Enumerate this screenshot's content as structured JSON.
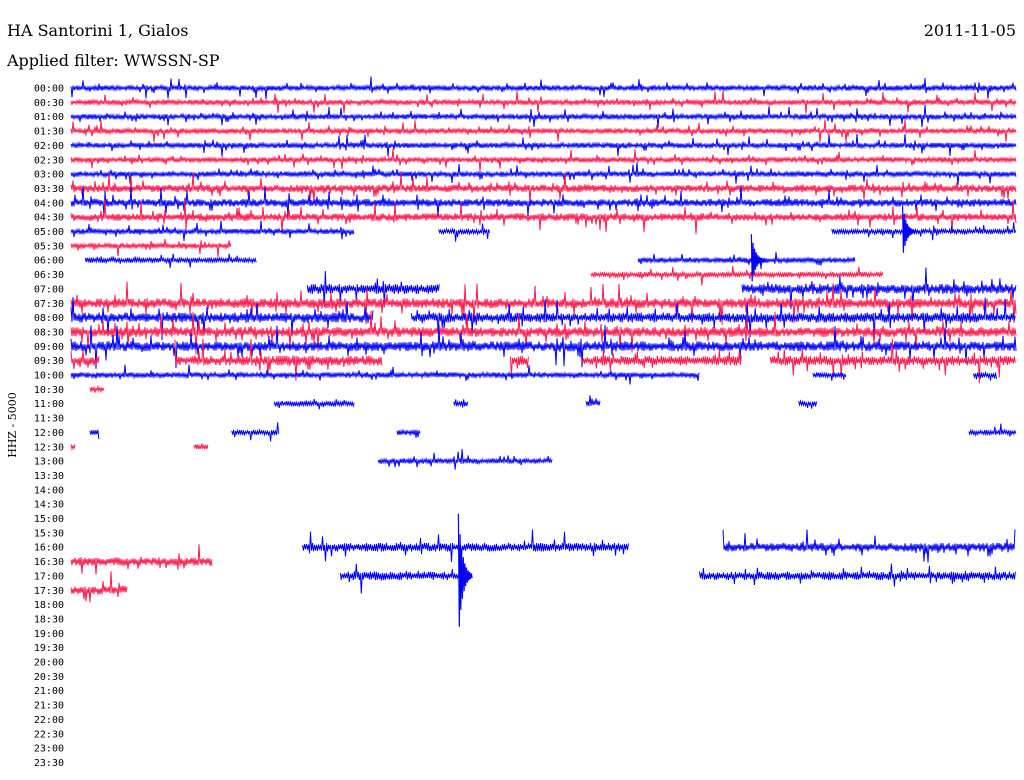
{
  "header": {
    "station": "HA Santorini 1, Gialos",
    "date": "2011-11-05",
    "filter": "Applied filter: WWSSN-SP"
  },
  "colors": {
    "odd_rows": "#0000ff",
    "even_rows": "#ff1a4d",
    "text": "#000000",
    "background": "#ffffff"
  },
  "chart_data": {
    "type": "line",
    "subtype": "helicorder",
    "ylabel": "HHZ - 5000",
    "rows": [
      "00:00",
      "00:30",
      "01:00",
      "01:30",
      "02:00",
      "02:30",
      "03:00",
      "03:30",
      "04:00",
      "04:30",
      "05:00",
      "05:30",
      "06:00",
      "06:30",
      "07:00",
      "07:30",
      "08:00",
      "08:30",
      "09:00",
      "09:30",
      "10:00",
      "10:30",
      "11:00",
      "11:30",
      "12:00",
      "12:30",
      "13:00",
      "13:30",
      "14:00",
      "14:30",
      "15:00",
      "15:30",
      "16:00",
      "16:30",
      "17:00",
      "17:30",
      "18:00",
      "18:30",
      "19:00",
      "19:30",
      "20:00",
      "20:30",
      "21:00",
      "21:30",
      "22:00",
      "22:30",
      "23:00",
      "23:30"
    ],
    "row_minutes": 30,
    "segments": [
      [
        [
          0,
          1
        ]
      ],
      [
        [
          0,
          1
        ]
      ],
      [
        [
          0,
          1
        ]
      ],
      [
        [
          0,
          1
        ]
      ],
      [
        [
          0,
          1
        ]
      ],
      [
        [
          0,
          1
        ]
      ],
      [
        [
          0,
          1
        ]
      ],
      [
        [
          0,
          1
        ]
      ],
      [
        [
          0,
          1
        ]
      ],
      [
        [
          0,
          1
        ]
      ],
      [
        [
          0,
          0.3
        ],
        [
          0.389,
          0.443
        ],
        [
          0.805,
          1
        ]
      ],
      [
        [
          0,
          0.17
        ]
      ],
      [
        [
          0.015,
          0.197
        ],
        [
          0.6,
          0.83
        ]
      ],
      [
        [
          0.55,
          0.86
        ]
      ],
      [
        [
          0.25,
          0.39
        ],
        [
          0.71,
          1
        ]
      ],
      [
        [
          0,
          1
        ]
      ],
      [
        [
          0,
          0.32
        ],
        [
          0.36,
          1
        ]
      ],
      [
        [
          0,
          1
        ]
      ],
      [
        [
          0,
          1
        ]
      ],
      [
        [
          0,
          0.03
        ],
        [
          0.11,
          0.33
        ],
        [
          0.465,
          0.485
        ],
        [
          0.54,
          0.71
        ],
        [
          0.74,
          1
        ]
      ],
      [
        [
          0,
          0.665
        ],
        [
          0.785,
          0.82
        ],
        [
          0.955,
          0.98
        ]
      ],
      [
        [
          0.02,
          0.035
        ]
      ],
      [
        [
          0.215,
          0.3
        ],
        [
          0.405,
          0.42
        ],
        [
          0.545,
          0.56
        ],
        [
          0.77,
          0.79
        ]
      ],
      [],
      [
        [
          0.02,
          0.03
        ],
        [
          0.17,
          0.22
        ],
        [
          0.345,
          0.37
        ],
        [
          0.95,
          1
        ]
      ],
      [
        [
          0,
          0.005
        ],
        [
          0.13,
          0.145
        ]
      ],
      [
        [
          0.325,
          0.51
        ]
      ],
      [],
      [],
      [],
      [],
      [],
      [
        [
          0.245,
          0.59
        ],
        [
          0.69,
          1
        ]
      ],
      [
        [
          0,
          0.15
        ]
      ],
      [
        [
          0.285,
          0.42
        ],
        [
          0.665,
          1
        ]
      ],
      [
        [
          0,
          0.06
        ]
      ],
      [],
      [],
      [],
      [],
      [],
      [],
      [],
      [],
      [],
      [],
      [],
      []
    ],
    "events": [
      {
        "row": 34,
        "x": 0.41,
        "amplitude": "large"
      },
      {
        "row": 12,
        "x": 0.72,
        "amplitude": "medium"
      },
      {
        "row": 10,
        "x": 0.88,
        "amplitude": "medium"
      }
    ]
  }
}
